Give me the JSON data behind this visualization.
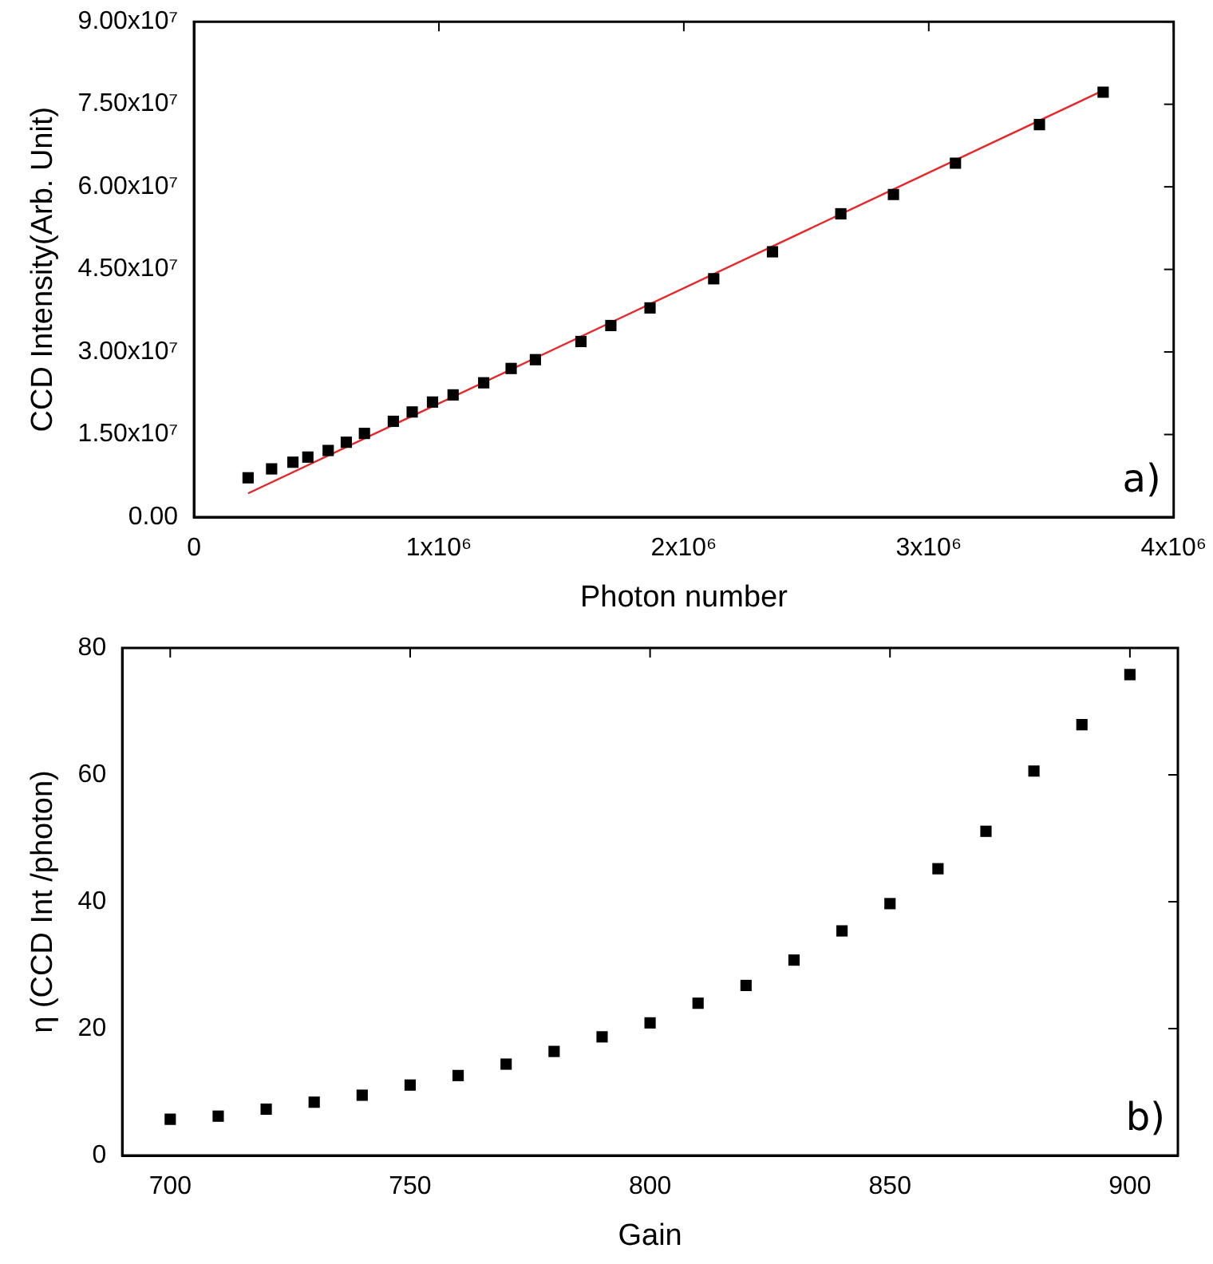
{
  "chart_data": [
    {
      "type": "scatter",
      "xlabel": "Photon number",
      "ylabel": "CCD Intensity(Arb. Unit)",
      "annotations": [
        "a)"
      ],
      "marker": "square",
      "xlim": [
        0,
        4000000
      ],
      "xticks": [
        0,
        {
          "value": 1000000,
          "label": "1x10⁶"
        },
        {
          "value": 2000000,
          "label": "2x10⁶"
        },
        {
          "value": 3000000,
          "label": "3x10⁶"
        },
        {
          "value": 4000000,
          "label": "4x10⁶"
        }
      ],
      "ylim": [
        0,
        90000000
      ],
      "yticks": [
        {
          "value": 0,
          "label": "0.00"
        },
        {
          "value": 15000000,
          "label": "1.50x10⁷"
        },
        {
          "value": 30000000,
          "label": "3.00x10⁷"
        },
        {
          "value": 45000000,
          "label": "4.50x10⁷"
        },
        {
          "value": 60000000,
          "label": "6.00x10⁷"
        },
        {
          "value": 75000000,
          "label": "7.50x10⁷"
        },
        {
          "value": 90000000,
          "label": "9.00x10⁷"
        }
      ],
      "series": [
        {
          "color": "#000000",
          "x": [
            221000,
            317000,
            404000,
            465000,
            548000,
            622000,
            696000,
            814000,
            891000,
            974000,
            1058000,
            1183000,
            1295000,
            1394000,
            1580000,
            1702000,
            1862000,
            2122000,
            2362000,
            2641000,
            2856000,
            3109000,
            3452000,
            3712000
          ],
          "values": [
            7140000,
            8760000,
            9970000,
            10900000,
            12100000,
            13600000,
            15200000,
            17400000,
            19100000,
            20900000,
            22200000,
            24400000,
            27000000,
            28600000,
            31900000,
            34800000,
            38000000,
            43300000,
            48200000,
            55100000,
            58600000,
            64300000,
            71300000,
            77200000
          ]
        },
        {
          "type": "line",
          "color": "#e8262a",
          "marker": "none",
          "x": [
            221000,
            3712000
          ],
          "values": [
            4310000,
            77500000
          ]
        }
      ]
    },
    {
      "type": "scatter",
      "xlabel": "Gain",
      "ylabel": "η (CCD Int /photon)",
      "annotations": [
        "b)"
      ],
      "marker": "square",
      "xlim": [
        690,
        910
      ],
      "xticks": [
        700,
        750,
        800,
        850,
        900
      ],
      "ylim": [
        0,
        80
      ],
      "yticks": [
        0,
        20,
        40,
        60,
        80
      ],
      "series": [
        {
          "color": "#000000",
          "x": [
            700,
            710,
            720,
            730,
            740,
            750,
            760,
            770,
            780,
            790,
            800,
            810,
            820,
            830,
            840,
            850,
            860,
            870,
            880,
            890,
            900
          ],
          "values": [
            5.7,
            6.2,
            7.3,
            8.4,
            9.5,
            11.1,
            12.6,
            14.4,
            16.4,
            18.7,
            20.9,
            24.0,
            26.8,
            30.8,
            35.4,
            39.7,
            45.2,
            51.1,
            60.6,
            67.9,
            75.8
          ]
        }
      ]
    }
  ]
}
